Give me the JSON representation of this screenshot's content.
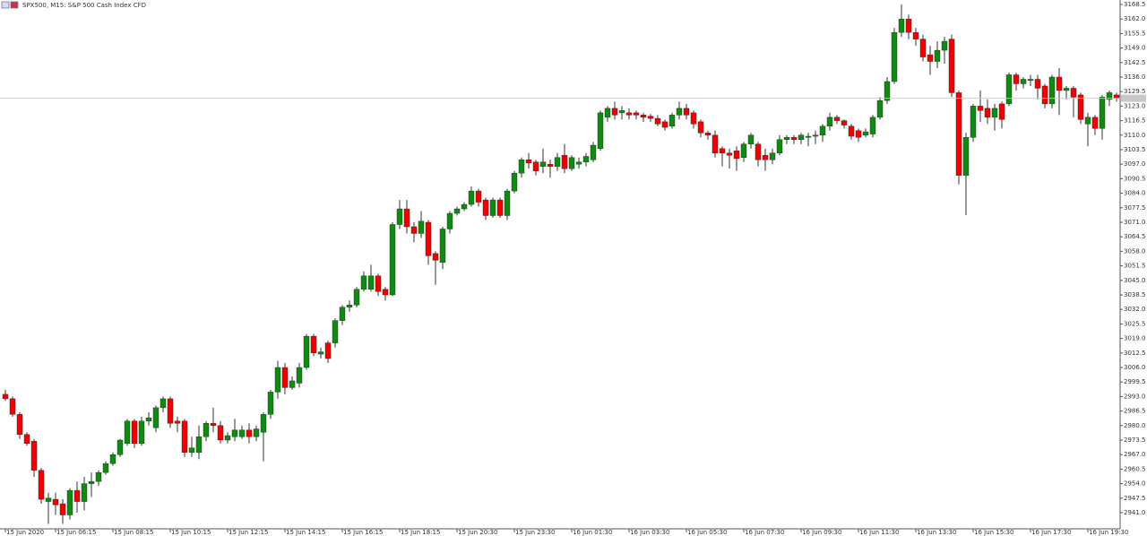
{
  "chart_data": {
    "type": "candlestick",
    "title": "SPX500, M15:  S&P 500 Cash Index CFD",
    "up_color": "#0f8a12",
    "down_color": "#f00000",
    "wick_color": "#333333",
    "grid": false,
    "open": [
      2994,
      2992,
      2985,
      2976,
      2973,
      2960,
      2946,
      2947,
      2945,
      2940,
      2951,
      2946,
      2954,
      2955,
      2959,
      2963,
      2967,
      2972,
      2982,
      2972,
      2982,
      2979,
      2988,
      2992,
      2982,
      2982,
      2968,
      2968,
      2975,
      2981,
      2980,
      2973.5,
      2975,
      2975,
      2978,
      2975,
      2977,
      2985,
      2995,
      3006,
      2997,
      2999,
      3006,
      3020,
      3012,
      3017,
      3017,
      3027,
      3033,
      3034,
      3041,
      3041,
      3047,
      3041,
      3038.5,
      3070,
      3077,
      3069,
      3066,
      3071,
      3057,
      3053,
      3068,
      3075,
      3077,
      3079,
      3085,
      3081,
      3074,
      3081,
      3074,
      3085,
      3093,
      3099,
      3098,
      3096,
      3097,
      3096,
      3101,
      3095,
      3097,
      3098,
      3099,
      3104,
      3118,
      3122,
      3120,
      3120,
      3120,
      3119,
      3118.5,
      3117.5,
      3116,
      3114,
      3119,
      3122,
      3120,
      3116,
      3111,
      3110,
      3104,
      3102,
      3103,
      3100,
      3106,
      3106,
      3101,
      3099,
      3102,
      3108,
      3109,
      3108,
      3109,
      3109.5,
      3110,
      3114,
      3118,
      3116.5,
      3114,
      3112,
      3110,
      3110.5,
      3118,
      3125.5,
      3134,
      3156,
      3162,
      3156,
      3153,
      3146,
      3143,
      3148,
      3153,
      3129,
      3092,
      3109,
      3123,
      3122,
      3118,
      3124,
      3124,
      3137,
      3133,
      3134.5,
      3135,
      3132,
      3124,
      3136,
      3130,
      3131,
      3128,
      3115,
      3118,
      3113,
      3126,
      3128
    ],
    "high": [
      2996,
      2993,
      2986,
      2977,
      2974,
      2961,
      2950,
      2950,
      2947,
      2952,
      2955,
      2957,
      2959,
      2960,
      2964,
      2968,
      2974,
      2983,
      2983,
      2984,
      2986,
      2989,
      2993,
      2993,
      2984,
      2983,
      2975,
      2980,
      2982,
      2988,
      2982,
      2977,
      2983,
      2980,
      2981,
      2980,
      2986,
      2996,
      3009,
      3008,
      3002,
      3008,
      3021,
      3021,
      3015,
      3018,
      3028,
      3034,
      3036,
      3042,
      3049,
      3052,
      3048,
      3042,
      3071,
      3081,
      3081,
      3071,
      3076,
      3072,
      3058,
      3069,
      3076,
      3078,
      3080,
      3087,
      3086,
      3082,
      3082,
      3082,
      3086,
      3094,
      3100,
      3102,
      3099,
      3104,
      3099,
      3102,
      3106,
      3101,
      3100,
      3102,
      3107,
      3121,
      3123,
      3125,
      3123,
      3122,
      3121,
      3120,
      3119.5,
      3119,
      3117,
      3120,
      3125,
      3124,
      3121,
      3117,
      3112,
      3112,
      3105,
      3104,
      3105,
      3107,
      3111,
      3107,
      3104,
      3104,
      3110,
      3110,
      3110,
      3111,
      3111,
      3112,
      3115,
      3120,
      3119,
      3117,
      3115,
      3113,
      3113,
      3119,
      3127,
      3136,
      3158,
      3168.5,
      3164,
      3158,
      3155,
      3150,
      3152,
      3154,
      3155,
      3130,
      3111,
      3124,
      3130,
      3126,
      3124,
      3125,
      3138,
      3138,
      3136,
      3137,
      3137,
      3133,
      3137,
      3140,
      3132,
      3132,
      3129,
      3120,
      3119,
      3128,
      3130,
      3129
    ],
    "low": [
      2991,
      2984,
      2974,
      2971,
      2957,
      2945,
      2936,
      2940,
      2936,
      2938,
      2941,
      2942,
      2948,
      2953,
      2958,
      2962,
      2966,
      2971,
      2970,
      2971,
      2980,
      2977,
      2986,
      2979,
      2977,
      2966,
      2966,
      2965,
      2973,
      2977,
      2972,
      2972,
      2973,
      2974,
      2972,
      2973,
      2964,
      2983,
      2992,
      2994,
      2996,
      2997,
      3005,
      3011,
      3010,
      3008,
      3015,
      3025,
      3031,
      3033,
      3040,
      3040,
      3038,
      3036,
      3038,
      3068,
      3066,
      3062,
      3064,
      3052,
      3043,
      3050,
      3066,
      3074,
      3076,
      3078,
      3078,
      3072,
      3073,
      3073,
      3072,
      3084,
      3091,
      3095,
      3092,
      3093,
      3091,
      3094,
      3093,
      3094,
      3095,
      3096,
      3098,
      3103,
      3116,
      3117,
      3117,
      3117,
      3117,
      3116,
      3116,
      3114,
      3112,
      3113,
      3117,
      3117,
      3113,
      3109,
      3108,
      3100,
      3096,
      3095,
      3094,
      3098,
      3104,
      3096,
      3094,
      3097,
      3101,
      3106,
      3106,
      3106,
      3105,
      3106,
      3107,
      3112,
      3115,
      3113,
      3108,
      3107,
      3109,
      3109,
      3117,
      3124,
      3133,
      3154,
      3153,
      3150,
      3143,
      3137,
      3140,
      3142,
      3127,
      3088,
      3074.2,
      3107,
      3116,
      3115,
      3112,
      3113,
      3123,
      3130,
      3131,
      3132,
      3126,
      3122,
      3122,
      3119,
      3126,
      3118,
      3115,
      3105,
      3110,
      3108,
      3123,
      3125
    ],
    "close": [
      2992,
      2985,
      2976,
      2972,
      2960,
      2947,
      2947.5,
      2944.5,
      2940,
      2951,
      2946,
      2954,
      2955,
      2959,
      2963,
      2967,
      2973.5,
      2982,
      2972,
      2982,
      2983.5,
      2988,
      2992,
      2981,
      2981,
      2968,
      2970,
      2975,
      2981,
      2980,
      2973.5,
      2975.5,
      2978,
      2978,
      2975,
      2978.5,
      2985,
      2995,
      3006,
      2997,
      3000,
      3006,
      3020,
      3012.5,
      3013,
      3010,
      3027,
      3033,
      3034,
      3041,
      3047,
      3047,
      3040,
      3038.5,
      3070,
      3077,
      3069,
      3066,
      3071.5,
      3056,
      3054,
      3068,
      3075,
      3077,
      3079,
      3085,
      3080,
      3074,
      3081,
      3074,
      3085,
      3093,
      3099,
      3097.5,
      3094,
      3098,
      3096,
      3100,
      3095,
      3100,
      3098,
      3100.5,
      3105.5,
      3120,
      3122,
      3119,
      3121,
      3119,
      3119,
      3118,
      3117.5,
      3115,
      3113.5,
      3119,
      3122,
      3119,
      3115,
      3111,
      3110,
      3102,
      3102,
      3101,
      3099.5,
      3106,
      3110,
      3099,
      3099,
      3102,
      3108,
      3109,
      3108,
      3110,
      3109.5,
      3110,
      3114,
      3118,
      3116.5,
      3114.5,
      3109.5,
      3109,
      3111.5,
      3118,
      3125.5,
      3134,
      3156,
      3162,
      3156,
      3153,
      3145,
      3143,
      3148,
      3152,
      3129,
      3092,
      3109,
      3123,
      3121,
      3118,
      3122,
      3117,
      3137,
      3133,
      3135,
      3135,
      3131,
      3124,
      3136,
      3130,
      3131,
      3127,
      3117,
      3118,
      3113,
      3127,
      3129,
      3126.5
    ],
    "xlim": [
      -0.75,
      155.5
    ],
    "xticks": [
      {
        "value": 0,
        "label": "15 Jun 2020"
      },
      {
        "value": 7,
        "label": "15 Jun 06:15"
      },
      {
        "value": 15,
        "label": "15 Jun 08:15"
      },
      {
        "value": 23,
        "label": "15 Jun 10:15"
      },
      {
        "value": 31,
        "label": "15 Jun 12:15"
      },
      {
        "value": 39,
        "label": "15 Jun 14:15"
      },
      {
        "value": 47,
        "label": "15 Jun 16:15"
      },
      {
        "value": 55,
        "label": "15 Jun 18:15"
      },
      {
        "value": 63,
        "label": "15 Jun 20:30"
      },
      {
        "value": 71,
        "label": "15 Jun 23:30"
      },
      {
        "value": 79,
        "label": "16 Jun 01:30"
      },
      {
        "value": 87,
        "label": "16 Jun 03:30"
      },
      {
        "value": 95,
        "label": "16 Jun 05:30"
      },
      {
        "value": 103,
        "label": "16 Jun 07:30"
      },
      {
        "value": 111,
        "label": "16 Jun 09:30"
      },
      {
        "value": 119,
        "label": "16 Jun 11:30"
      },
      {
        "value": 127,
        "label": "16 Jun 13:30"
      },
      {
        "value": 135,
        "label": "16 Jun 15:30"
      },
      {
        "value": 143,
        "label": "16 Jun 17:30"
      },
      {
        "value": 151,
        "label": "16 Jun 19:30"
      }
    ],
    "ylim": [
      2933.5,
      3170.5
    ],
    "yticks": [
      3168.5,
      {
        "value": 3162,
        "label": "3162.0"
      },
      3155.5,
      {
        "value": 3149,
        "label": "3149.0"
      },
      3142.5,
      {
        "value": 3136,
        "label": "3136.0"
      },
      3129.5,
      {
        "value": 3123,
        "label": "3123.0"
      },
      3116.5,
      {
        "value": 3110,
        "label": "3110.0"
      },
      3103.5,
      {
        "value": 3097,
        "label": "3097.0"
      },
      3090.5,
      {
        "value": 3084,
        "label": "3084.0"
      },
      3077.5,
      {
        "value": 3071,
        "label": "3071.0"
      },
      3064.5,
      {
        "value": 3058,
        "label": "3058.0"
      },
      3051.5,
      {
        "value": 3045,
        "label": "3045.0"
      },
      3038.5,
      {
        "value": 3032,
        "label": "3032.0"
      },
      3025.5,
      {
        "value": 3019,
        "label": "3019.0"
      },
      3012.5,
      {
        "value": 3006,
        "label": "3006.0"
      },
      2999.5,
      {
        "value": 2993,
        "label": "2993.0"
      },
      2986.5,
      {
        "value": 2980,
        "label": "2980.0"
      },
      2973.5,
      {
        "value": 2967,
        "label": "2967.0"
      },
      2960.5,
      {
        "value": 2954,
        "label": "2954.0"
      },
      2947.5,
      {
        "value": 2941,
        "label": "2941.0"
      }
    ]
  }
}
